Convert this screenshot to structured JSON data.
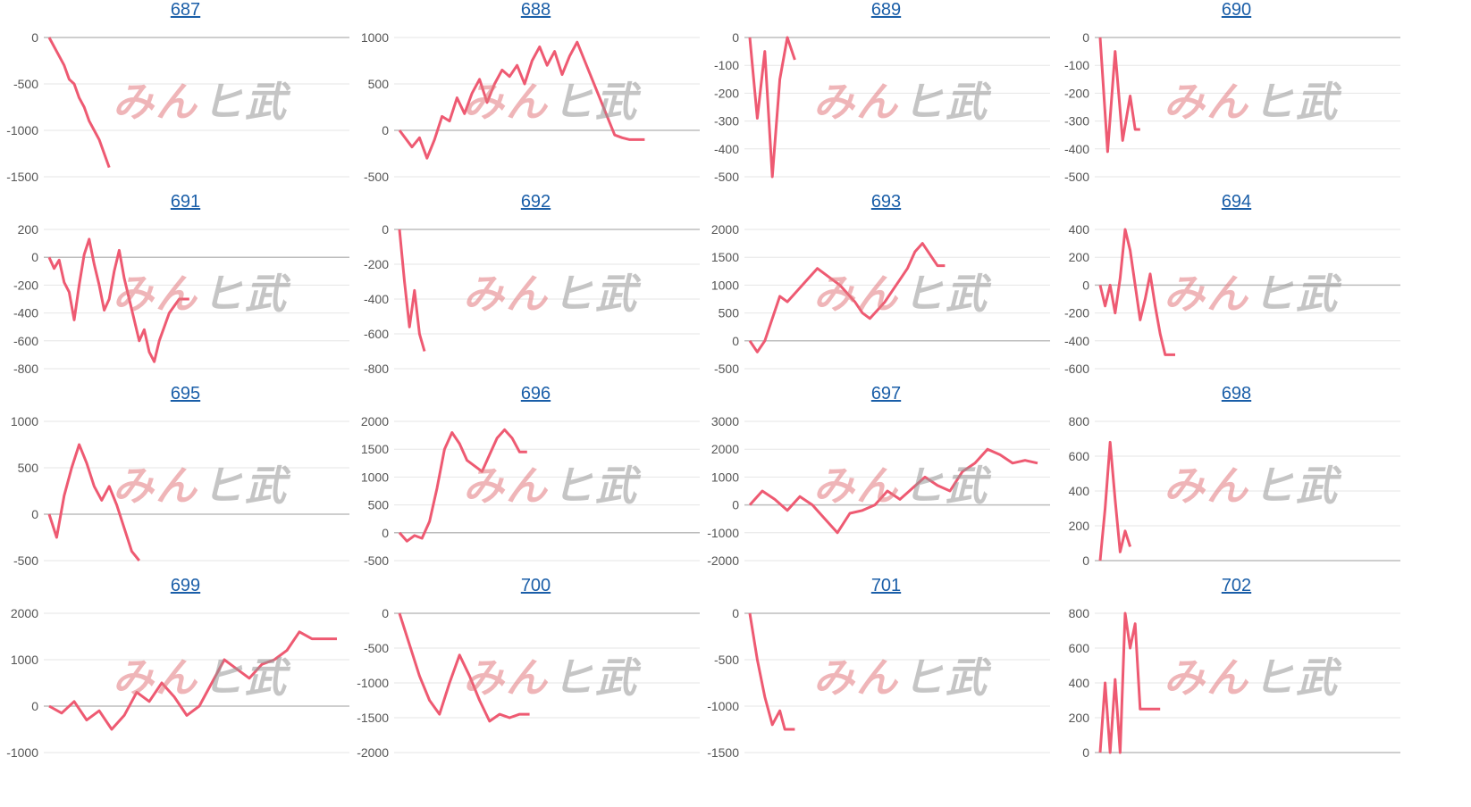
{
  "watermark": {
    "part1": "みん",
    "part2": "ヒ武"
  },
  "colors": {
    "line": "#ee5a72",
    "grid": "#e6e6e6",
    "zero": "#bdbdbd",
    "title": "#1a5ea8"
  },
  "chart_data": [
    {
      "type": "line",
      "title": "687",
      "ylim": [
        -1500,
        0
      ],
      "yticks": [
        0,
        -500,
        -1000,
        -1500
      ],
      "x": [
        0,
        3,
        6,
        8,
        10,
        12,
        14,
        16,
        18,
        20,
        22,
        24
      ],
      "values": [
        0,
        -150,
        -300,
        -450,
        -500,
        -650,
        -750,
        -900,
        -1000,
        -1100,
        -1250,
        -1400
      ]
    },
    {
      "type": "line",
      "title": "688",
      "ylim": [
        -500,
        1000
      ],
      "yticks": [
        1000,
        500,
        0,
        -500
      ],
      "x": [
        0,
        5,
        8,
        11,
        14,
        17,
        20,
        23,
        26,
        29,
        32,
        35,
        38,
        41,
        44,
        47,
        50,
        53,
        56,
        59,
        62,
        65,
        68,
        71,
        74,
        77,
        80,
        83,
        86,
        89,
        92,
        95,
        98
      ],
      "values": [
        0,
        -180,
        -80,
        -300,
        -100,
        150,
        100,
        350,
        180,
        400,
        550,
        300,
        500,
        650,
        580,
        700,
        500,
        750,
        900,
        700,
        850,
        600,
        800,
        950,
        750,
        550,
        350,
        150,
        -50,
        -80,
        -100,
        -100,
        -100
      ]
    },
    {
      "type": "line",
      "title": "689",
      "ylim": [
        -500,
        0
      ],
      "yticks": [
        0,
        -100,
        -200,
        -300,
        -400,
        -500
      ],
      "x": [
        0,
        3,
        6,
        9,
        12,
        15,
        18
      ],
      "values": [
        0,
        -290,
        -50,
        -500,
        -150,
        0,
        -80
      ]
    },
    {
      "type": "line",
      "title": "690",
      "ylim": [
        -500,
        0
      ],
      "yticks": [
        0,
        -100,
        -200,
        -300,
        -400,
        -500
      ],
      "x": [
        0,
        3,
        6,
        9,
        12,
        14,
        16
      ],
      "values": [
        0,
        -410,
        -50,
        -370,
        -210,
        -330,
        -330
      ]
    },
    {
      "type": "line",
      "title": "691",
      "ylim": [
        -800,
        200
      ],
      "yticks": [
        200,
        0,
        -200,
        -400,
        -600,
        -800
      ],
      "x": [
        0,
        2,
        4,
        6,
        8,
        10,
        12,
        14,
        16,
        18,
        20,
        22,
        24,
        26,
        28,
        30,
        32,
        34,
        36,
        38,
        40,
        42,
        44,
        46,
        48,
        50,
        52,
        54,
        56
      ],
      "values": [
        0,
        -80,
        -20,
        -180,
        -250,
        -450,
        -200,
        20,
        130,
        -50,
        -200,
        -380,
        -300,
        -100,
        50,
        -150,
        -300,
        -450,
        -600,
        -520,
        -680,
        -750,
        -600,
        -500,
        -400,
        -350,
        -300,
        -300,
        -300
      ]
    },
    {
      "type": "line",
      "title": "692",
      "ylim": [
        -800,
        0
      ],
      "yticks": [
        0,
        -200,
        -400,
        -600,
        -800
      ],
      "x": [
        0,
        2,
        4,
        6,
        8,
        10
      ],
      "values": [
        0,
        -300,
        -560,
        -350,
        -600,
        -700
      ]
    },
    {
      "type": "line",
      "title": "693",
      "ylim": [
        -500,
        2000
      ],
      "yticks": [
        2000,
        1500,
        1000,
        500,
        0,
        -500
      ],
      "x": [
        0,
        3,
        6,
        9,
        12,
        15,
        18,
        21,
        24,
        27,
        30,
        33,
        36,
        39,
        42,
        45,
        48,
        51,
        54,
        57,
        60,
        63,
        66,
        69,
        72,
        75,
        78
      ],
      "values": [
        0,
        -200,
        0,
        400,
        800,
        700,
        850,
        1000,
        1150,
        1300,
        1200,
        1100,
        1000,
        850,
        700,
        500,
        400,
        550,
        700,
        900,
        1100,
        1300,
        1600,
        1750,
        1550,
        1350,
        1350
      ]
    },
    {
      "type": "line",
      "title": "694",
      "ylim": [
        -600,
        400
      ],
      "yticks": [
        400,
        200,
        0,
        -200,
        -400,
        -600
      ],
      "x": [
        0,
        2,
        4,
        6,
        8,
        10,
        12,
        14,
        16,
        18,
        20,
        22,
        24,
        26,
        28,
        30
      ],
      "values": [
        0,
        -150,
        0,
        -200,
        50,
        400,
        250,
        0,
        -250,
        -100,
        80,
        -150,
        -350,
        -500,
        -500,
        -500
      ]
    },
    {
      "type": "line",
      "title": "695",
      "ylim": [
        -500,
        1000
      ],
      "yticks": [
        1000,
        500,
        0,
        -500
      ],
      "x": [
        0,
        3,
        6,
        9,
        12,
        15,
        18,
        21,
        24,
        27,
        30,
        33,
        36
      ],
      "values": [
        0,
        -250,
        200,
        500,
        750,
        550,
        300,
        150,
        300,
        100,
        -150,
        -400,
        -500
      ]
    },
    {
      "type": "line",
      "title": "696",
      "ylim": [
        -500,
        2000
      ],
      "yticks": [
        2000,
        1500,
        1000,
        500,
        0,
        -500
      ],
      "x": [
        0,
        3,
        6,
        9,
        12,
        15,
        18,
        21,
        24,
        27,
        30,
        33,
        36,
        39,
        42,
        45,
        48,
        51
      ],
      "values": [
        0,
        -150,
        -50,
        -100,
        200,
        800,
        1500,
        1800,
        1600,
        1300,
        1200,
        1100,
        1400,
        1700,
        1850,
        1700,
        1450,
        1450
      ]
    },
    {
      "type": "line",
      "title": "697",
      "ylim": [
        -2000,
        3000
      ],
      "yticks": [
        3000,
        2000,
        1000,
        0,
        -1000,
        -2000
      ],
      "x": [
        0,
        5,
        10,
        15,
        20,
        25,
        30,
        35,
        40,
        45,
        50,
        55,
        60,
        65,
        70,
        75,
        80,
        85,
        90,
        95,
        100,
        105,
        110,
        115
      ],
      "values": [
        0,
        500,
        200,
        -200,
        300,
        0,
        -500,
        -1000,
        -300,
        -200,
        0,
        500,
        200,
        600,
        1000,
        700,
        500,
        1200,
        1500,
        2000,
        1800,
        1500,
        1600,
        1500
      ]
    },
    {
      "type": "line",
      "title": "698",
      "ylim": [
        0,
        800
      ],
      "yticks": [
        800,
        600,
        400,
        200,
        0
      ],
      "x": [
        0,
        2,
        4,
        6,
        8,
        10,
        12
      ],
      "values": [
        0,
        300,
        680,
        350,
        50,
        170,
        80
      ]
    },
    {
      "type": "line",
      "title": "699",
      "ylim": [
        -1000,
        2000
      ],
      "yticks": [
        2000,
        1000,
        0,
        -1000
      ],
      "x": [
        0,
        5,
        10,
        15,
        20,
        25,
        30,
        35,
        40,
        45,
        50,
        55,
        60,
        65,
        70,
        75,
        80,
        85,
        90,
        95,
        100,
        105,
        110,
        115
      ],
      "values": [
        0,
        -150,
        100,
        -300,
        -100,
        -500,
        -200,
        300,
        100,
        500,
        200,
        -200,
        0,
        500,
        1000,
        800,
        600,
        900,
        1000,
        1200,
        1600,
        1450,
        1450,
        1450
      ]
    },
    {
      "type": "line",
      "title": "700",
      "ylim": [
        -2000,
        0
      ],
      "yticks": [
        0,
        -500,
        -1000,
        -1500,
        -2000
      ],
      "x": [
        0,
        4,
        8,
        12,
        16,
        20,
        24,
        28,
        32,
        36,
        40,
        44,
        48,
        52
      ],
      "values": [
        0,
        -450,
        -900,
        -1250,
        -1450,
        -1000,
        -600,
        -900,
        -1250,
        -1550,
        -1450,
        -1500,
        -1450,
        -1450
      ]
    },
    {
      "type": "line",
      "title": "701",
      "ylim": [
        -1500,
        0
      ],
      "yticks": [
        0,
        -500,
        -1000,
        -1500
      ],
      "x": [
        0,
        3,
        6,
        9,
        12,
        14,
        16,
        18
      ],
      "values": [
        0,
        -500,
        -900,
        -1200,
        -1050,
        -1250,
        -1250,
        -1250
      ]
    },
    {
      "type": "line",
      "title": "702",
      "ylim": [
        0,
        800
      ],
      "yticks": [
        800,
        600,
        400,
        200,
        0
      ],
      "x": [
        0,
        2,
        4,
        6,
        8,
        10,
        12,
        14,
        16,
        18,
        20,
        22,
        24
      ],
      "values": [
        0,
        400,
        0,
        420,
        0,
        800,
        600,
        740,
        250,
        250,
        250,
        250,
        250
      ]
    }
  ]
}
